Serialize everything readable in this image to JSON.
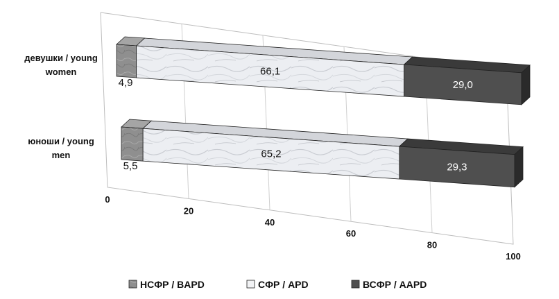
{
  "chart_data": {
    "type": "bar",
    "stacked": true,
    "percent": true,
    "orientation": "horizontal",
    "three_d": true,
    "categories": [
      "девушки / young women",
      "юноши / young men"
    ],
    "series": [
      {
        "name": "НСФР / BAPD",
        "values": [
          4.9,
          5.5
        ],
        "labels": [
          "4,9",
          "5,5"
        ],
        "color": "#8c8c8c"
      },
      {
        "name": "СФР / APD",
        "values": [
          66.1,
          65.2
        ],
        "labels": [
          "66,1",
          "65,2"
        ],
        "color": "#e6e8ec"
      },
      {
        "name": "ВСФР / AAPD",
        "values": [
          29.0,
          29.3
        ],
        "labels": [
          "29,0",
          "29,3"
        ],
        "color": "#4a4a4a"
      }
    ],
    "xlim": [
      0,
      100
    ],
    "xticks": [
      "0",
      "20",
      "40",
      "60",
      "80",
      "100"
    ],
    "grid": true,
    "legend": "bottom"
  }
}
